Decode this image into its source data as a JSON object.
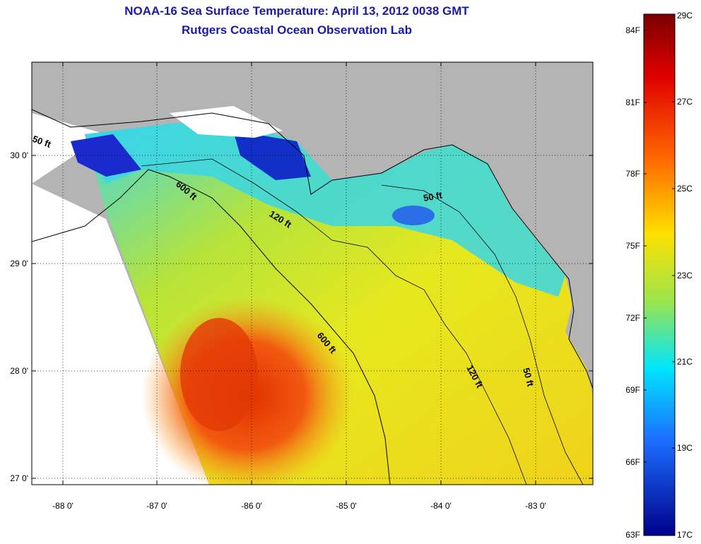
{
  "title": {
    "line1": "NOAA-16 Sea Surface Temperature:  April 13, 2012 0038 GMT",
    "line2": "Rutgers Coastal Ocean Observation Lab"
  },
  "map": {
    "lon_ticks": [
      "-88 0'",
      "-87 0'",
      "-86 0'",
      "-85 0'",
      "-84 0'",
      "-83 0'"
    ],
    "lat_ticks": [
      "30 0'",
      "29 0'",
      "28 0'",
      "27 0'"
    ],
    "contours": [
      "50 ft",
      "600 ft",
      "120 ft",
      "50 ft",
      "600 ft",
      "120 ft",
      "50 ft"
    ]
  },
  "colorbar": {
    "fahrenheit": [
      "84F",
      "81F",
      "78F",
      "75F",
      "72F",
      "69F",
      "66F",
      "63F"
    ],
    "celsius": [
      "29C",
      "27C",
      "25C",
      "23C",
      "21C",
      "19C",
      "17C"
    ]
  },
  "colors": {
    "title": "#1a1aa6",
    "land": "#b4b4b4",
    "cloud": "#ffffff"
  }
}
